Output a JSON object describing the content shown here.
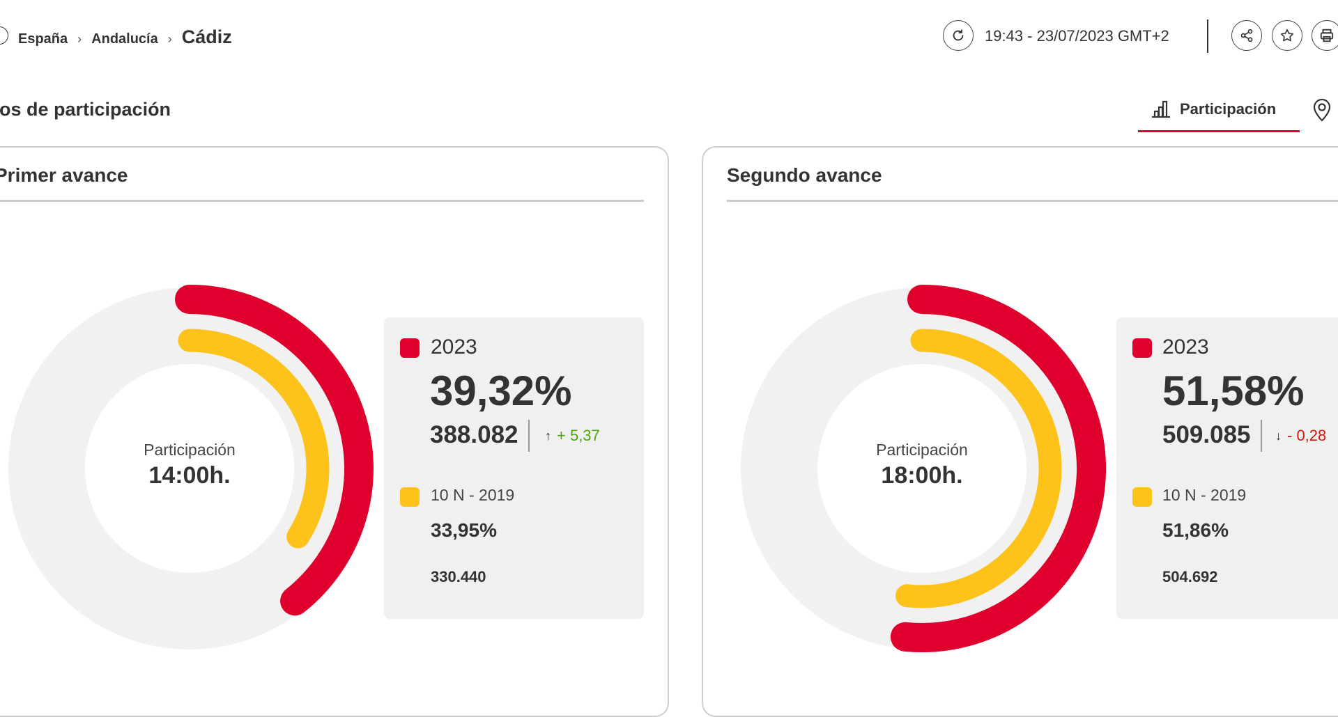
{
  "breadcrumb": {
    "items": [
      "España",
      "Andalucía"
    ],
    "current": "Cádiz"
  },
  "header": {
    "timestamp": "19:43 - 23/07/2023 GMT+2"
  },
  "section": {
    "title": "tos de participación"
  },
  "tabs": {
    "active_label": "Participación"
  },
  "colors": {
    "accent": "#e0002d",
    "current_year": "#e0002d",
    "previous": "#fdc31a",
    "track": "#f1f1f1",
    "panel": "#f0f0f0",
    "delta_up": "#4aa800",
    "delta_down": "#d4160f"
  },
  "icons": [
    "refresh-icon",
    "share-icon",
    "star-icon",
    "print-icon",
    "bar-chart-icon",
    "map-pin-icon"
  ],
  "cards": [
    {
      "title": "Primer avance",
      "center_label": "Participación",
      "center_time": "14:00h.",
      "current": {
        "label": "2023",
        "pct": 39.32,
        "pct_text": "39,32%",
        "votes": "388.082",
        "delta": "+ 5,37",
        "delta_dir": "up"
      },
      "previous": {
        "label": "10 N - 2019",
        "pct": 33.95,
        "pct_text": "33,95%",
        "votes": "330.440"
      }
    },
    {
      "title": "Segundo avance",
      "center_label": "Participación",
      "center_time": "18:00h.",
      "current": {
        "label": "2023",
        "pct": 51.58,
        "pct_text": "51,58%",
        "votes": "509.085",
        "delta": "- 0,28",
        "delta_dir": "down"
      },
      "previous": {
        "label": "10 N - 2019",
        "pct": 51.86,
        "pct_text": "51,86%",
        "votes": "504.692"
      }
    }
  ]
}
